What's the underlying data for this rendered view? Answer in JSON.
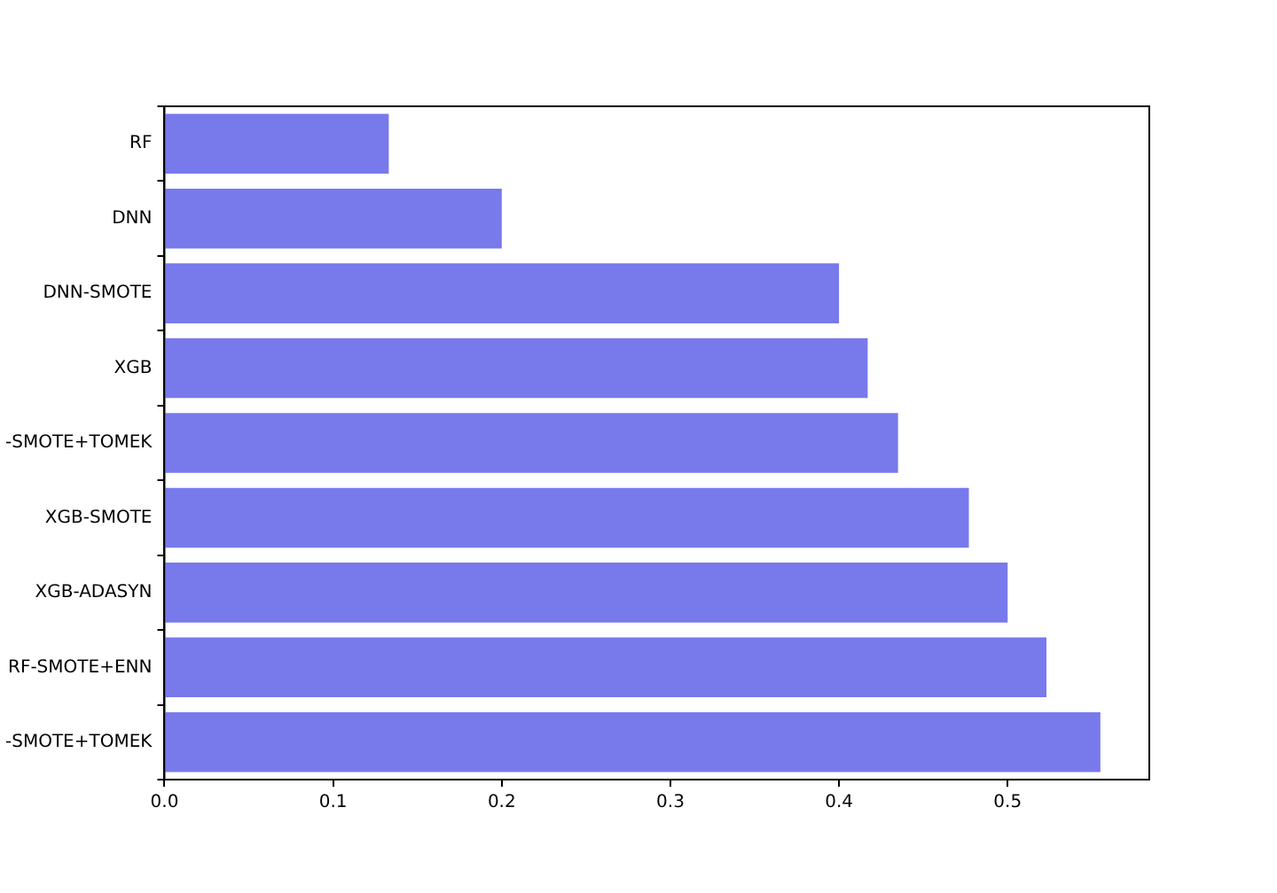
{
  "chart_data": {
    "type": "bar",
    "orientation": "horizontal",
    "categories": [
      "RF",
      "DNN",
      "DNN-SMOTE",
      "XGB",
      "-SMOTE+TOMEK",
      "XGB-SMOTE",
      "XGB-ADASYN",
      "RF-SMOTE+ENN",
      "-SMOTE+TOMEK"
    ],
    "values": [
      0.133,
      0.2,
      0.4,
      0.417,
      0.435,
      0.477,
      0.5,
      0.523,
      0.555
    ],
    "color": "#7879eb",
    "xlim": [
      0,
      0.584
    ],
    "xticks": [
      {
        "value": 0,
        "label": "0.0"
      },
      0.1,
      0.2,
      0.3,
      0.4,
      0.5
    ],
    "grid": false,
    "legend": false
  }
}
